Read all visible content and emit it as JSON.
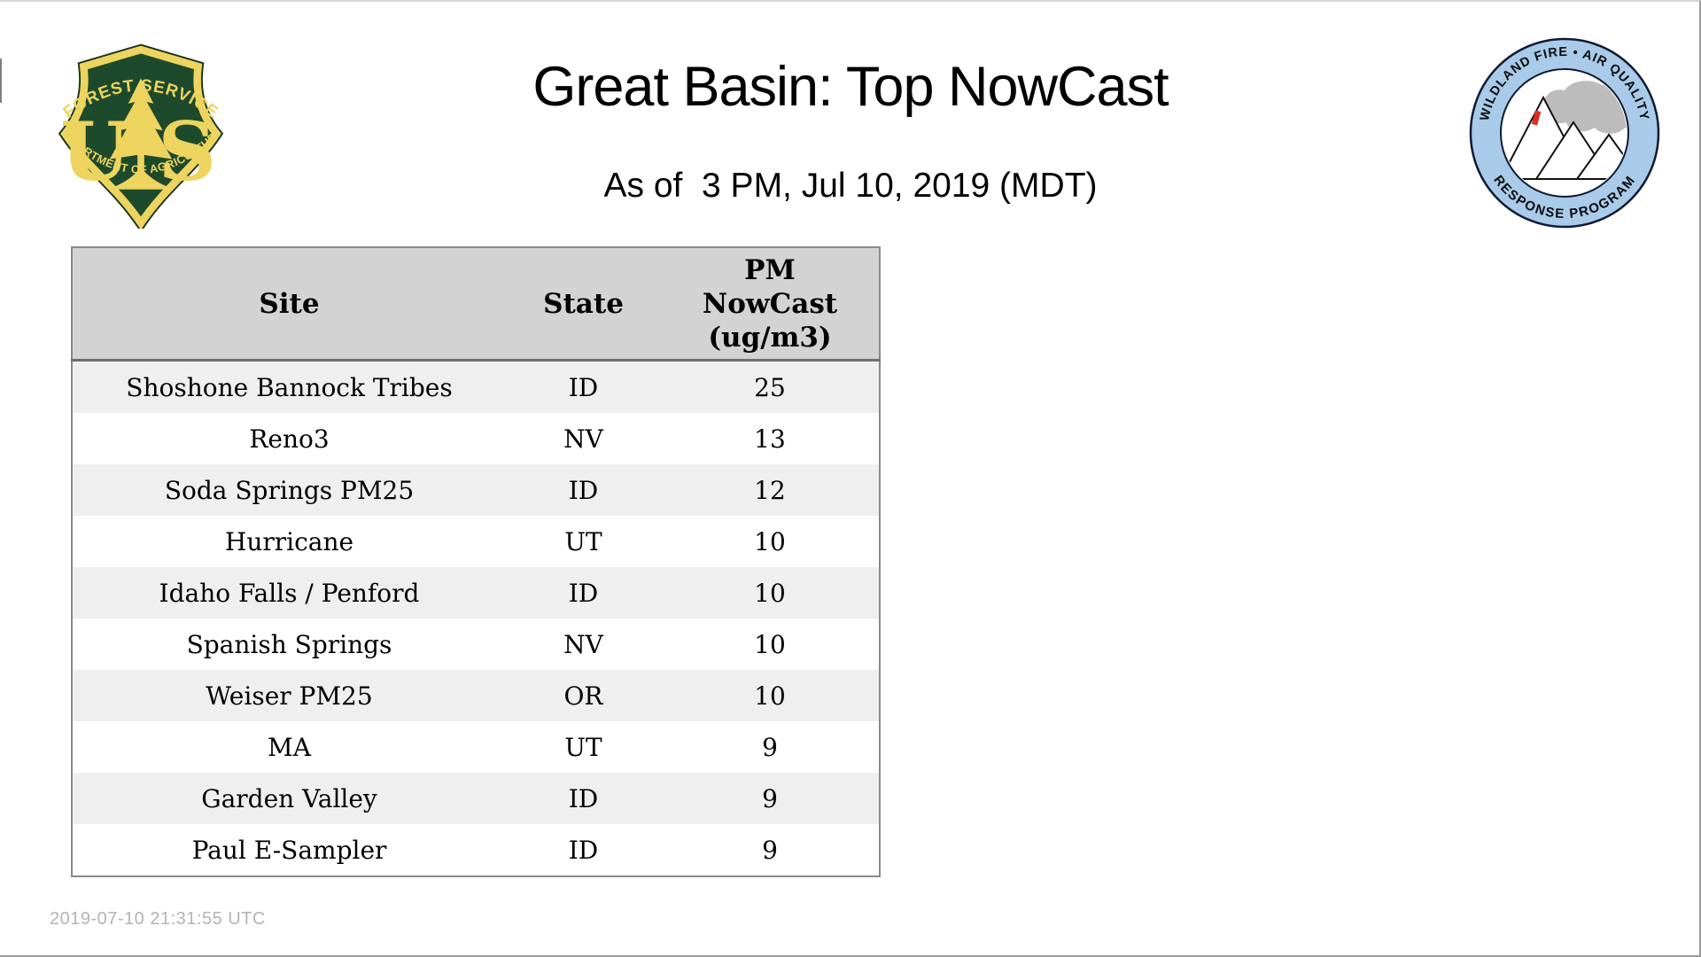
{
  "page": {
    "title": "Great Basin: Top NowCast",
    "subtitle": "As of  3 PM, Jul 10, 2019 (MDT)",
    "generated_timestamp": "2019-07-10 21:31:55 UTC"
  },
  "logos": {
    "forest_service": {
      "arc_top": "FOREST SERVICE",
      "arc_bottom": "DEPARTMENT OF AGRICULTURE",
      "monogram_u": "U",
      "monogram_s": "S",
      "colors": {
        "field_green": "#1E4A2C",
        "gold": "#EDD45F",
        "rim_dark": "#17331D"
      }
    },
    "wildland_fire_aqrp": {
      "arc_top": "WILDLAND FIRE • AIR QUALITY",
      "arc_bottom": "RESPONSE PROGRAM",
      "colors": {
        "ring_blue": "#A9CBE9",
        "smoke_gray": "#BCBCBC",
        "flame_red": "#E02B20",
        "outline": "#0E1B33"
      }
    }
  },
  "table": {
    "col_site": "Site",
    "col_state": "State",
    "col_value": "PM\nNowCast\n(ug/m3)",
    "rows": [
      {
        "site": "Shoshone Bannock Tribes",
        "state": "ID",
        "value": "25"
      },
      {
        "site": "Reno3",
        "state": "NV",
        "value": "13"
      },
      {
        "site": "Soda Springs PM25",
        "state": "ID",
        "value": "12"
      },
      {
        "site": "Hurricane",
        "state": "UT",
        "value": "10"
      },
      {
        "site": "Idaho Falls / Penford",
        "state": "ID",
        "value": "10"
      },
      {
        "site": "Spanish Springs",
        "state": "NV",
        "value": "10"
      },
      {
        "site": "Weiser PM25",
        "state": "OR",
        "value": "10"
      },
      {
        "site": "MA",
        "state": "UT",
        "value": "9"
      },
      {
        "site": "Garden Valley",
        "state": "ID",
        "value": "9"
      },
      {
        "site": "Paul E-Sampler",
        "state": "ID",
        "value": "9"
      }
    ],
    "colors": {
      "header_bg": "#D3D3D3",
      "row_alt_bg": "#EFEFEF",
      "border": "#8A8A8A"
    }
  }
}
